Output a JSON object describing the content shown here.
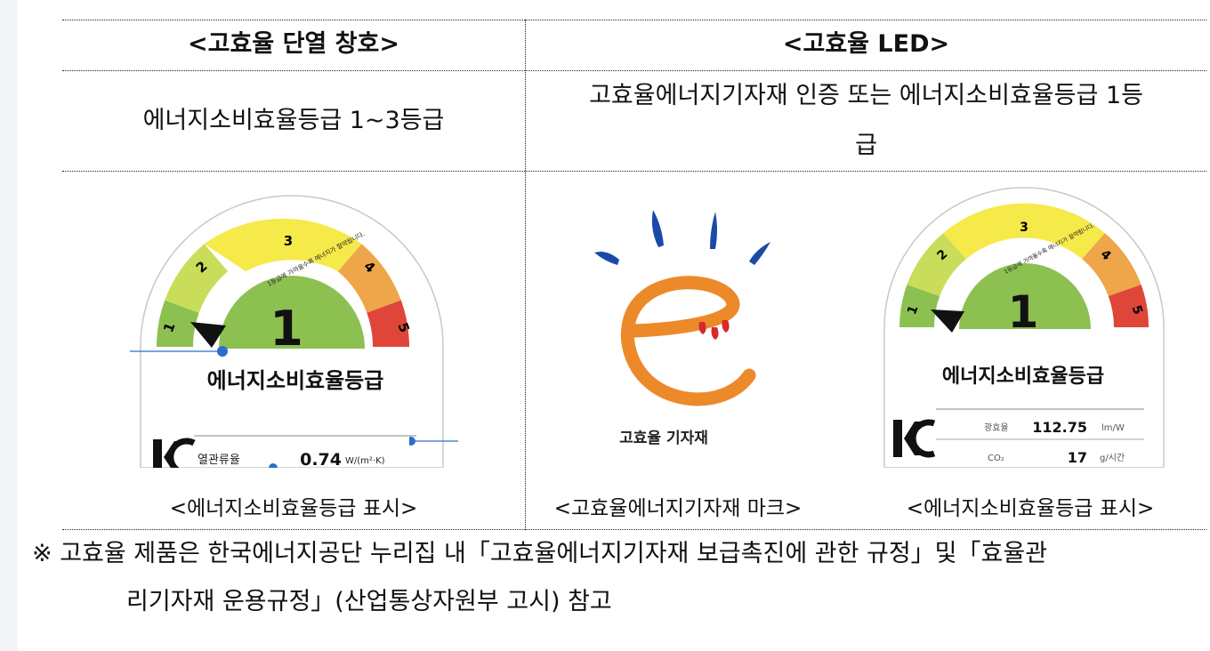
{
  "headers": {
    "left": "<고효율 단열 창호>",
    "right": "<고효율 LED>"
  },
  "criteria": {
    "left": "에너지소비효율등급 1~3등급",
    "right_line1": "고효율에너지기자재 인증 또는 에너지소비효율등급 1등",
    "right_line2": "급"
  },
  "label_left": {
    "grades": [
      "1",
      "2",
      "3",
      "4",
      "5"
    ],
    "big_grade": "1",
    "arc_text": "1등급에 가까울수록 에너지가 절약됩니다.",
    "title": "에너지소비효율등급",
    "row_label": "열관류율",
    "row_value": "0.74",
    "row_unit": "W/(m²·K)"
  },
  "mark": {
    "caption_text": "고효율 기자재"
  },
  "label_right": {
    "grades": [
      "1",
      "2",
      "3",
      "4",
      "5"
    ],
    "big_grade": "1",
    "arc_text": "1등급에 가까울수록 에너지가 절약됩니다.",
    "title": "에너지소비효율등급",
    "row1_label": "광효율",
    "row1_value": "112.75",
    "row1_unit": "lm/W",
    "row2_label": "CO₂",
    "row2_value": "17",
    "row2_unit": "g/시간"
  },
  "captions": {
    "left": "<에너지소비효율등급 표시>",
    "middle": "<고효율에너지기자재 마크>",
    "right": "<에너지소비효율등급 표시>"
  },
  "note": {
    "line1": "※ 고효율 제품은 한국에너지공단 누리집 내「고효율에너지기자재 보급촉진에 관한 규정」및「효율관",
    "line2": "리기자재 운용규정」(산업통상자원부 고시) 참고"
  },
  "colors": {
    "grade1": "#8cc152",
    "grade2": "#c9dd5a",
    "grade3": "#f6e94a",
    "grade4": "#efa54a",
    "grade5": "#e0453a",
    "mark_orange": "#ec8a2a",
    "mark_blue": "#1a4aa8",
    "mark_red": "#d9292b",
    "pointer_blue": "#2a6fc9"
  }
}
